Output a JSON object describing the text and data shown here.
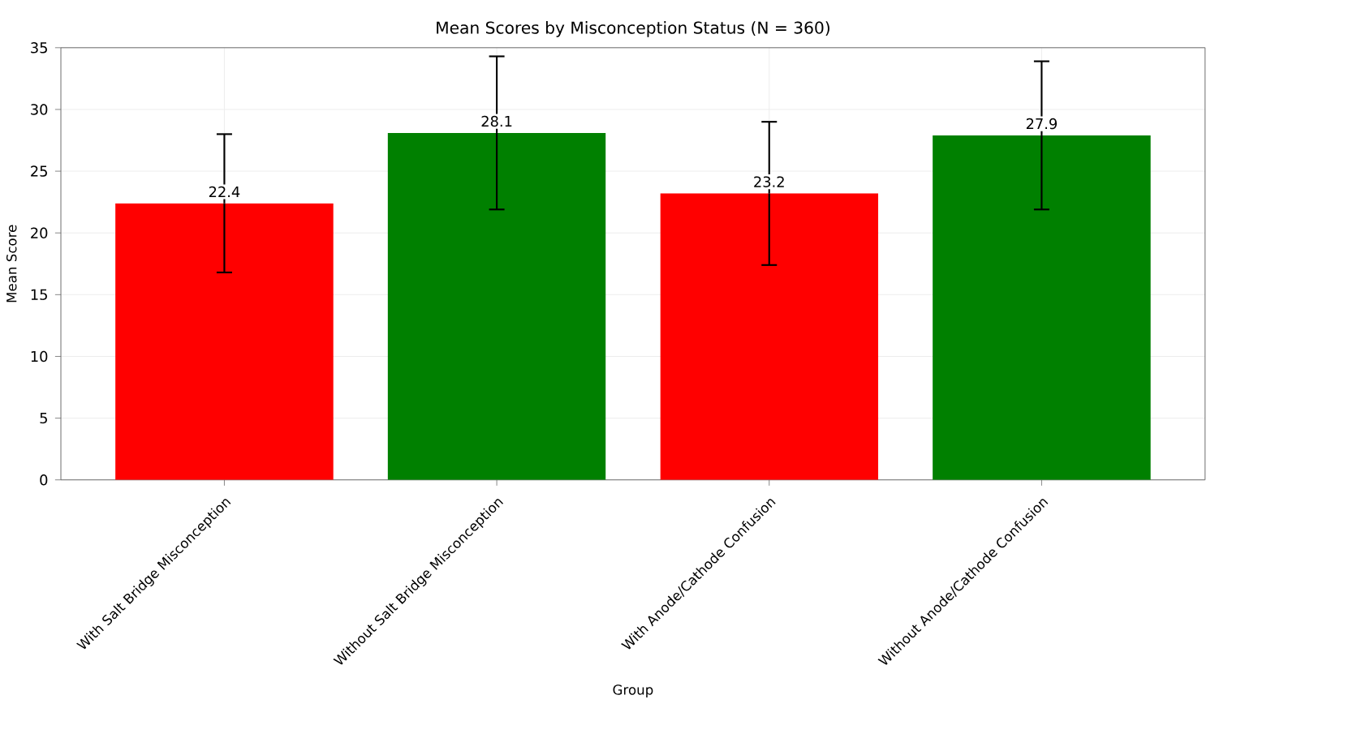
{
  "chart_data": {
    "type": "bar",
    "title": "Mean Scores by Misconception Status (N = 360)",
    "xlabel": "Group",
    "ylabel": "Mean Score",
    "categories": [
      "With Salt Bridge Misconception",
      "Without Salt Bridge Misconception",
      "With Anode/Cathode Confusion",
      "Without Anode/Cathode Confusion"
    ],
    "values": [
      22.4,
      28.1,
      23.2,
      27.9
    ],
    "errors": [
      5.6,
      6.2,
      5.8,
      6.0
    ],
    "colors": [
      "#ff0000",
      "#008000",
      "#ff0000",
      "#008000"
    ],
    "ylim": [
      0,
      35
    ],
    "yticks": [
      0,
      5,
      10,
      15,
      20,
      25,
      30,
      35
    ],
    "grid": true,
    "data_labels": true
  }
}
